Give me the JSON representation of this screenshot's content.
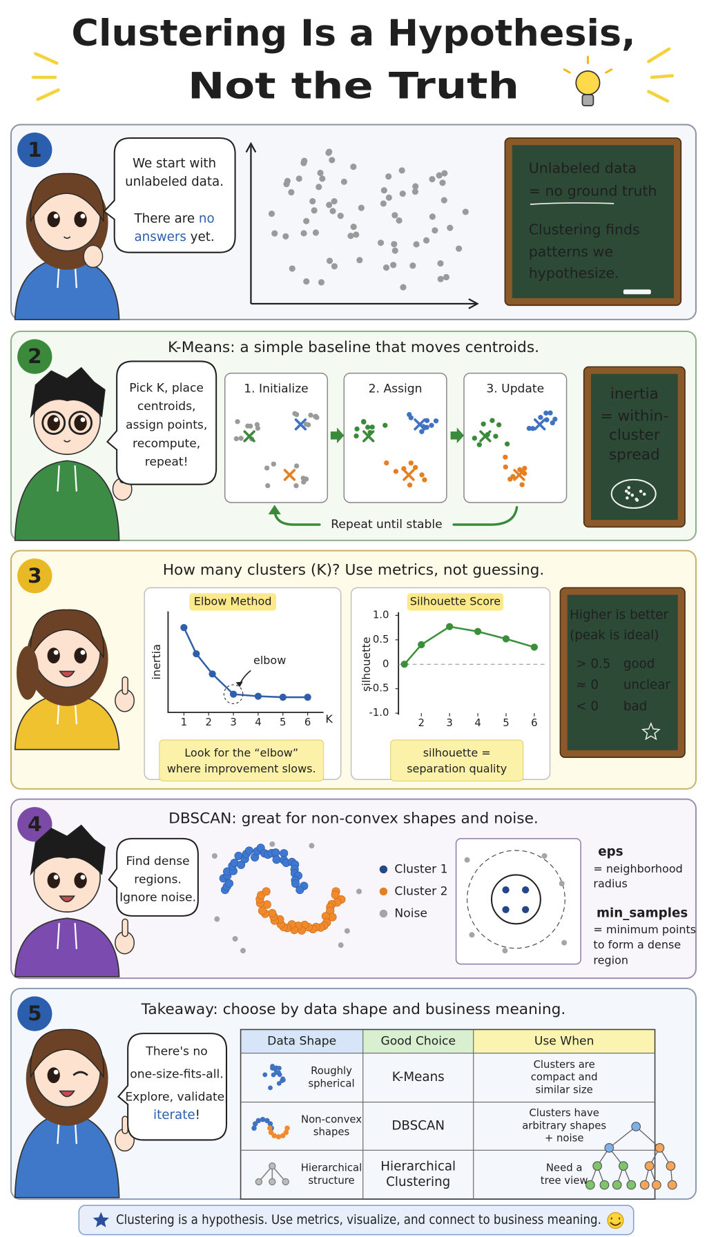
{
  "title": {
    "line1": "Clustering Is a Hypothesis,",
    "line2": "Not the Truth"
  },
  "section1": {
    "number": "1",
    "speech_lines": [
      "We start with",
      "unlabeled data."
    ],
    "speech_line3": "There are",
    "speech_highlight": [
      "no",
      "answers"
    ],
    "speech_line4": "yet.",
    "board": [
      "Unlabeled data",
      "= no ground truth",
      "Clustering finds",
      "patterns we",
      "hypothesize."
    ]
  },
  "section2": {
    "number": "2",
    "heading": "K-Means: a simple baseline that moves centroids.",
    "speech_lines": [
      "Pick K, place",
      "centroids,",
      "assign points,",
      "recompute,"
    ],
    "speech_highlight": "repeat!",
    "steps": [
      "1. Initialize",
      "2. Assign",
      "3. Update"
    ],
    "loop_label": "Repeat until stable",
    "board": [
      "inertia",
      "= within-",
      "cluster",
      "spread"
    ]
  },
  "section3": {
    "number": "3",
    "heading": "How many clusters (K)? Use metrics, not guessing.",
    "board": [
      "Higher is better",
      "(peak is ideal)"
    ],
    "board_rows": [
      [
        "> 0.5",
        "good"
      ],
      [
        "≈ 0",
        "unclear"
      ],
      [
        "< 0",
        "bad"
      ]
    ]
  },
  "chart_data": [
    {
      "type": "line",
      "title": "Elbow Method",
      "ylabel": "inertia",
      "xlabel": "K",
      "annotation": "elbow",
      "note": [
        "Look for the “elbow”",
        "where improvement slows."
      ],
      "color": "#2f5fa8",
      "x": [
        1,
        1.5,
        2.15,
        3,
        4,
        5,
        6
      ],
      "values": [
        84,
        58,
        38,
        18,
        16,
        15,
        15
      ],
      "xlim": [
        0.36,
        6.64
      ],
      "ylim": [
        0,
        100
      ],
      "xticks": [
        1,
        2,
        3,
        4,
        5,
        6
      ]
    },
    {
      "type": "line",
      "title": "Silhouette Score",
      "ylabel": "silhouette",
      "note": [
        "silhouette =",
        "separation quality"
      ],
      "color": "#3a8f3a",
      "x": [
        1.4,
        2,
        3,
        4,
        5,
        6
      ],
      "values": [
        0,
        0.4,
        0.77,
        0.67,
        0.52,
        0.35
      ],
      "xlim": [
        1.19,
        6.36
      ],
      "ylim": [
        -1,
        1
      ],
      "xticks": [
        2,
        3,
        4,
        5,
        6
      ],
      "yticks": [
        {
          "value": 1,
          "label": "1.0"
        },
        0.5,
        0,
        -0.5,
        {
          "value": -1,
          "label": "-1.0"
        }
      ]
    }
  ],
  "section4": {
    "number": "4",
    "heading": "DBSCAN: great for non-convex shapes and noise.",
    "speech_lines": [
      "Find dense",
      "regions.",
      "Ignore noise."
    ],
    "legend": [
      "Cluster 1",
      "Cluster 2",
      "Noise"
    ],
    "eps": "eps",
    "eps_desc": [
      "= neighborhood",
      "radius"
    ],
    "min_samples": "min_samples",
    "min_samples_desc": [
      "= minimum points",
      "to form a dense",
      "region"
    ]
  },
  "section5": {
    "number": "5",
    "heading": "Takeaway: choose by data shape and business meaning.",
    "speech_lines": [
      "There's no",
      "one-size-fits-all.",
      "Explore, validate,"
    ],
    "speech_highlight": "iterate",
    "speech_end": "!",
    "table": {
      "headers": [
        "Data Shape",
        "Good Choice",
        "Use When"
      ],
      "rows": [
        [
          [
            "Roughly",
            "spherical"
          ],
          [
            "K-Means"
          ],
          [
            "Clusters are",
            "compact and",
            "similar size"
          ]
        ],
        [
          [
            "Non-convex",
            "shapes"
          ],
          [
            "DBSCAN"
          ],
          [
            "Clusters have",
            "arbitrary shapes",
            "+ noise"
          ]
        ],
        [
          [
            "Hierarchical",
            "structure"
          ],
          [
            "Hierarchical",
            "Clustering"
          ],
          [
            "Need a",
            "tree view"
          ]
        ]
      ]
    }
  },
  "footer": "Clustering is a hypothesis. Use metrics, visualize, and connect to business meaning."
}
